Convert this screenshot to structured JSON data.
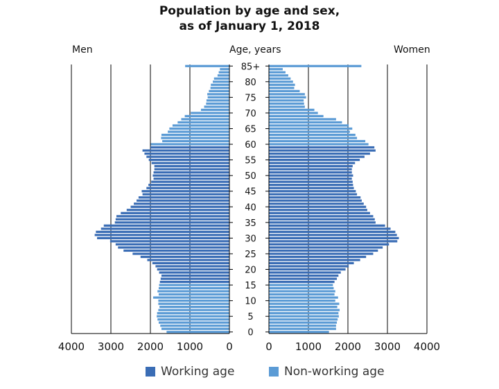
{
  "chart_data": {
    "type": "bar",
    "orientation": "horizontal-population-pyramid",
    "title_line1": "Population by age and sex,",
    "title_line2": "as of January 1, 2018",
    "left_label": "Men",
    "center_label": "Age, years",
    "right_label": "Women",
    "x_ticks_left": [
      "4000",
      "3000",
      "2000",
      "1000",
      "0"
    ],
    "x_ticks_right": [
      "0",
      "1000",
      "2000",
      "3000",
      "4000"
    ],
    "xlim": [
      0,
      4000
    ],
    "age_tick_labels": [
      "0",
      "5",
      "10",
      "15",
      "20",
      "25",
      "30",
      "35",
      "40",
      "45",
      "50",
      "55",
      "60",
      "65",
      "70",
      "75",
      "80",
      "85+"
    ],
    "categories": [
      "0",
      "1",
      "2",
      "3",
      "4",
      "5",
      "6",
      "7",
      "8",
      "9",
      "10",
      "11",
      "12",
      "13",
      "14",
      "15",
      "16",
      "17",
      "18",
      "19",
      "20",
      "21",
      "22",
      "23",
      "24",
      "25",
      "26",
      "27",
      "28",
      "29",
      "30",
      "31",
      "32",
      "33",
      "34",
      "35",
      "36",
      "37",
      "38",
      "39",
      "40",
      "41",
      "42",
      "43",
      "44",
      "45",
      "46",
      "47",
      "48",
      "49",
      "50",
      "51",
      "52",
      "53",
      "54",
      "55",
      "56",
      "57",
      "58",
      "59",
      "60",
      "61",
      "62",
      "63",
      "64",
      "65",
      "66",
      "67",
      "68",
      "69",
      "70",
      "71",
      "72",
      "73",
      "74",
      "75",
      "76",
      "77",
      "78",
      "79",
      "80",
      "81",
      "82",
      "83",
      "84",
      "85+"
    ],
    "working_age_range": [
      16,
      59
    ],
    "series": [
      {
        "name": "Men",
        "values": [
          1590,
          1720,
          1750,
          1790,
          1820,
          1840,
          1830,
          1800,
          1770,
          1800,
          1800,
          1930,
          1790,
          1820,
          1790,
          1780,
          1760,
          1740,
          1720,
          1780,
          1830,
          1870,
          1950,
          2080,
          2250,
          2450,
          2680,
          2820,
          2880,
          3020,
          3350,
          3410,
          3380,
          3250,
          3180,
          2900,
          2880,
          2860,
          2750,
          2600,
          2500,
          2420,
          2350,
          2300,
          2200,
          2220,
          2100,
          2050,
          1980,
          1920,
          1940,
          1920,
          1900,
          1900,
          1970,
          2040,
          2100,
          2150,
          2200,
          2000,
          1990,
          1700,
          1730,
          1720,
          1560,
          1520,
          1440,
          1310,
          1220,
          1130,
          980,
          720,
          640,
          590,
          580,
          550,
          560,
          520,
          480,
          470,
          420,
          390,
          300,
          270,
          240,
          1120
        ]
      },
      {
        "name": "Women",
        "values": [
          1520,
          1700,
          1700,
          1720,
          1740,
          1770,
          1760,
          1790,
          1730,
          1780,
          1680,
          1750,
          1660,
          1680,
          1640,
          1620,
          1660,
          1720,
          1760,
          1820,
          1940,
          2020,
          2150,
          2310,
          2460,
          2640,
          2760,
          2880,
          3040,
          3250,
          3290,
          3240,
          3200,
          3080,
          2940,
          2700,
          2680,
          2640,
          2560,
          2490,
          2460,
          2400,
          2350,
          2320,
          2230,
          2200,
          2150,
          2130,
          2120,
          2100,
          2130,
          2100,
          2100,
          2120,
          2180,
          2300,
          2420,
          2560,
          2700,
          2670,
          2520,
          2440,
          2230,
          2190,
          2050,
          2110,
          2020,
          1850,
          1700,
          1380,
          1240,
          1150,
          910,
          890,
          880,
          940,
          910,
          780,
          640,
          660,
          610,
          550,
          490,
          420,
          350,
          2340
        ]
      }
    ]
  },
  "legend": {
    "working_label": "Working age",
    "nonworking_label": "Non-working age"
  },
  "colors": {
    "working": "#3a6db5",
    "nonworking": "#5b9bd5",
    "axis": "#000000"
  }
}
